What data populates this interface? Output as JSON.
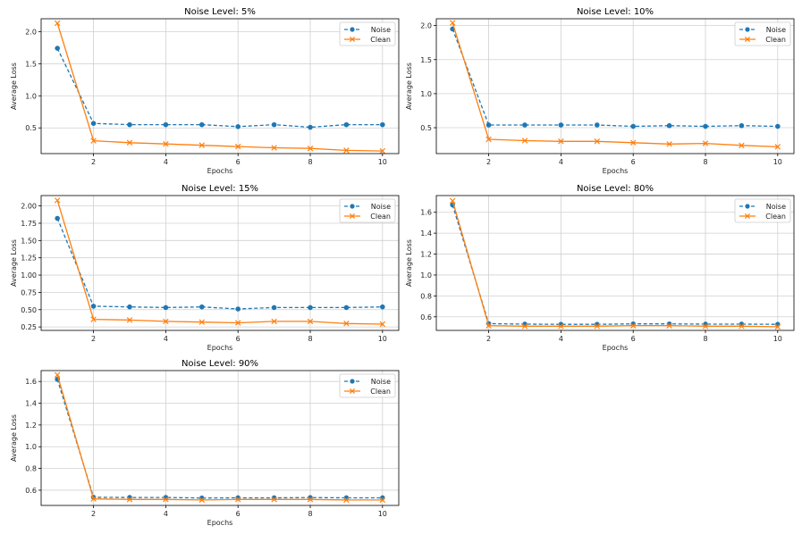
{
  "colors": {
    "noise": "#1f77b4",
    "clean": "#ff7f0e",
    "grid": "#d0d0d0"
  },
  "chart_data": [
    {
      "type": "line",
      "title": "Noise Level: 5%",
      "xlabel": "Epochs",
      "ylabel": "Average Loss",
      "x": [
        1,
        2,
        3,
        4,
        5,
        6,
        7,
        8,
        9,
        10
      ],
      "xlim": [
        0.55,
        10.45
      ],
      "ylim": [
        0.1,
        2.2
      ],
      "xticks": [
        2,
        4,
        6,
        8,
        10
      ],
      "yticks": [
        0.5,
        1.0,
        1.5,
        2.0
      ],
      "ytick_labels": [
        "0.5",
        "1.0",
        "1.5",
        "2.0"
      ],
      "grid": true,
      "legend": "top-right",
      "series": [
        {
          "name": "Noise",
          "style": "dashed",
          "marker": "circle",
          "color": "#1f77b4",
          "values": [
            1.74,
            0.57,
            0.55,
            0.55,
            0.55,
            0.52,
            0.55,
            0.51,
            0.55,
            0.55
          ]
        },
        {
          "name": "Clean",
          "style": "solid",
          "marker": "x",
          "color": "#ff7f0e",
          "values": [
            2.13,
            0.3,
            0.27,
            0.25,
            0.23,
            0.21,
            0.19,
            0.18,
            0.15,
            0.14
          ]
        }
      ]
    },
    {
      "type": "line",
      "title": "Noise Level: 10%",
      "xlabel": "Epochs",
      "ylabel": "Average Loss",
      "x": [
        1,
        2,
        3,
        4,
        5,
        6,
        7,
        8,
        9,
        10
      ],
      "xlim": [
        0.55,
        10.45
      ],
      "ylim": [
        0.12,
        2.1
      ],
      "xticks": [
        2,
        4,
        6,
        8,
        10
      ],
      "yticks": [
        0.5,
        1.0,
        1.5,
        2.0
      ],
      "ytick_labels": [
        "0.5",
        "1.0",
        "1.5",
        "2.0"
      ],
      "grid": true,
      "legend": "top-right",
      "series": [
        {
          "name": "Noise",
          "style": "dashed",
          "marker": "circle",
          "color": "#1f77b4",
          "values": [
            1.95,
            0.54,
            0.54,
            0.54,
            0.54,
            0.52,
            0.53,
            0.52,
            0.53,
            0.52
          ]
        },
        {
          "name": "Clean",
          "style": "solid",
          "marker": "x",
          "color": "#ff7f0e",
          "values": [
            2.04,
            0.33,
            0.31,
            0.3,
            0.3,
            0.28,
            0.26,
            0.27,
            0.24,
            0.22
          ]
        }
      ]
    },
    {
      "type": "line",
      "title": "Noise Level: 15%",
      "xlabel": "Epochs",
      "ylabel": "Average Loss",
      "x": [
        1,
        2,
        3,
        4,
        5,
        6,
        7,
        8,
        9,
        10
      ],
      "xlim": [
        0.55,
        10.45
      ],
      "ylim": [
        0.2,
        2.15
      ],
      "xticks": [
        2,
        4,
        6,
        8,
        10
      ],
      "yticks": [
        0.25,
        0.5,
        0.75,
        1.0,
        1.25,
        1.5,
        1.75,
        2.0
      ],
      "ytick_labels": [
        "0.25",
        "0.50",
        "0.75",
        "1.00",
        "1.25",
        "1.50",
        "1.75",
        "2.00"
      ],
      "grid": true,
      "legend": "top-right",
      "series": [
        {
          "name": "Noise",
          "style": "dashed",
          "marker": "circle",
          "color": "#1f77b4",
          "values": [
            1.82,
            0.55,
            0.54,
            0.53,
            0.54,
            0.51,
            0.53,
            0.53,
            0.53,
            0.54
          ]
        },
        {
          "name": "Clean",
          "style": "solid",
          "marker": "x",
          "color": "#ff7f0e",
          "values": [
            2.08,
            0.36,
            0.35,
            0.33,
            0.32,
            0.31,
            0.33,
            0.33,
            0.3,
            0.29
          ]
        }
      ]
    },
    {
      "type": "line",
      "title": "Noise Level: 80%",
      "xlabel": "Epochs",
      "ylabel": "Average Loss",
      "x": [
        1,
        2,
        3,
        4,
        5,
        6,
        7,
        8,
        9,
        10
      ],
      "xlim": [
        0.55,
        10.45
      ],
      "ylim": [
        0.47,
        1.76
      ],
      "xticks": [
        2,
        4,
        6,
        8,
        10
      ],
      "yticks": [
        0.6,
        0.8,
        1.0,
        1.2,
        1.4,
        1.6
      ],
      "ytick_labels": [
        "0.6",
        "0.8",
        "1.0",
        "1.2",
        "1.4",
        "1.6"
      ],
      "grid": true,
      "legend": "top-right",
      "series": [
        {
          "name": "Noise",
          "style": "dashed",
          "marker": "circle",
          "color": "#1f77b4",
          "values": [
            1.67,
            0.535,
            0.53,
            0.528,
            0.528,
            0.532,
            0.532,
            0.53,
            0.53,
            0.528
          ]
        },
        {
          "name": "Clean",
          "style": "solid",
          "marker": "x",
          "color": "#ff7f0e",
          "values": [
            1.71,
            0.515,
            0.51,
            0.51,
            0.51,
            0.515,
            0.515,
            0.51,
            0.51,
            0.505
          ]
        }
      ]
    },
    {
      "type": "line",
      "title": "Noise Level: 90%",
      "xlabel": "Epochs",
      "ylabel": "Average Loss",
      "x": [
        1,
        2,
        3,
        4,
        5,
        6,
        7,
        8,
        9,
        10
      ],
      "xlim": [
        0.55,
        10.45
      ],
      "ylim": [
        0.46,
        1.7
      ],
      "xticks": [
        2,
        4,
        6,
        8,
        10
      ],
      "yticks": [
        0.6,
        0.8,
        1.0,
        1.2,
        1.4,
        1.6
      ],
      "ytick_labels": [
        "0.6",
        "0.8",
        "1.0",
        "1.2",
        "1.4",
        "1.6"
      ],
      "grid": true,
      "legend": "top-right",
      "series": [
        {
          "name": "Noise",
          "style": "dashed",
          "marker": "circle",
          "color": "#1f77b4",
          "values": [
            1.62,
            0.535,
            0.533,
            0.533,
            0.528,
            0.53,
            0.53,
            0.532,
            0.53,
            0.53
          ]
        },
        {
          "name": "Clean",
          "style": "solid",
          "marker": "x",
          "color": "#ff7f0e",
          "values": [
            1.66,
            0.52,
            0.515,
            0.515,
            0.51,
            0.515,
            0.515,
            0.515,
            0.51,
            0.51
          ]
        }
      ]
    }
  ]
}
